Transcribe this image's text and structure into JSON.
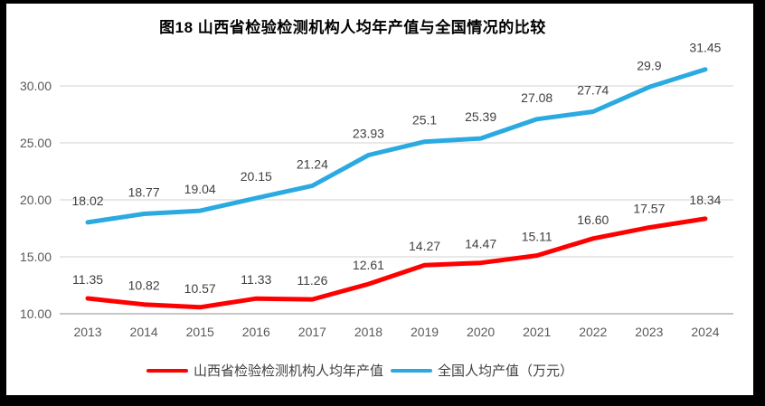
{
  "chart_data": {
    "type": "line",
    "title": "图18 山西省检验检测机构人均年产值与全国情况的比较",
    "categories": [
      "2013",
      "2014",
      "2015",
      "2016",
      "2017",
      "2018",
      "2019",
      "2020",
      "2021",
      "2022",
      "2023",
      "2024"
    ],
    "series": [
      {
        "name": "山西省检验检测机构人均年产值",
        "color": "#FF0000",
        "values": [
          11.35,
          10.82,
          10.57,
          11.33,
          11.26,
          12.61,
          14.27,
          14.47,
          15.11,
          16.6,
          17.57,
          18.34
        ],
        "labels": [
          "11.35",
          "10.82",
          "10.57",
          "11.33",
          "11.26",
          "12.61",
          "14.27",
          "14.47",
          "15.11",
          "16.60",
          "17.57",
          "18.34"
        ]
      },
      {
        "name": "全国人均产值（万元）",
        "color": "#2BAAE2",
        "values": [
          18.02,
          18.77,
          19.04,
          20.15,
          21.24,
          23.93,
          25.1,
          25.39,
          27.08,
          27.74,
          29.9,
          31.45
        ],
        "labels": [
          "18.02",
          "18.77",
          "19.04",
          "20.15",
          "21.24",
          "23.93",
          "25.1",
          "25.39",
          "27.08",
          "27.74",
          "29.9",
          "31.45"
        ]
      }
    ],
    "y_axis": {
      "min": 10,
      "max": 32.5,
      "tick_values": [
        10,
        15,
        20,
        25,
        30
      ],
      "tick_labels": [
        "10.00",
        "15.00",
        "20.00",
        "25.00",
        "30.00"
      ]
    },
    "x_axis": {
      "label": ""
    },
    "grid": true,
    "legend_position": "bottom",
    "colors": {
      "grid_line": "#D9D9D9",
      "axis_line": "#C6C6C6",
      "tick_text": "#595959",
      "data_label_text": "#404040",
      "title_text": "#000000",
      "legend_text": "#404040",
      "frame": "#000000",
      "background": "#FFFFFF"
    }
  }
}
